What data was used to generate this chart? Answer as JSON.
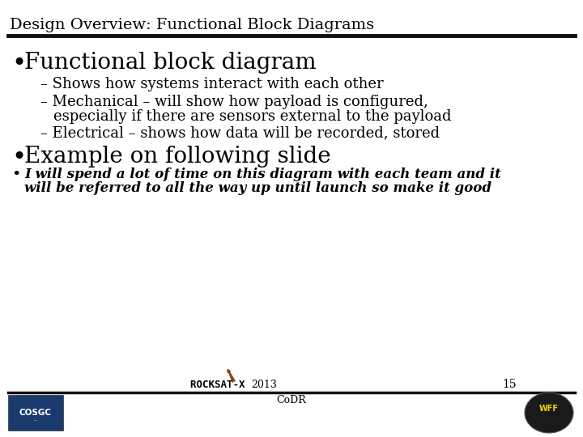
{
  "title": "Design Overview: Functional Block Diagrams",
  "title_fontsize": 14,
  "title_font": "serif",
  "background_color": "#ffffff",
  "title_color": "#000000",
  "bullet1": "Functional block diagram",
  "bullet1_fontsize": 20,
  "sub1": "– Shows how systems interact with each other",
  "sub2_line1": "– Mechanical – will show how payload is configured,",
  "sub2_line2": "    especially if there are sensors external to the payload",
  "sub3": "– Electrical – shows how data will be recorded, stored",
  "sub_fontsize": 13,
  "bullet2": "Example on following slide",
  "bullet2_fontsize": 20,
  "bullet3_line1": "I will spend a lot of time on this diagram with each team and it",
  "bullet3_line2": "will be referred to all the way up until launch so make it good",
  "bullet3_fontsize": 12,
  "footer_text": "CoDR",
  "footer_year": "2013",
  "footer_page": "15",
  "footer_fontsize": 9,
  "line_color": "#000000",
  "cosgc_bg": "#1a3a6e",
  "cosgc_text": "COSGC"
}
